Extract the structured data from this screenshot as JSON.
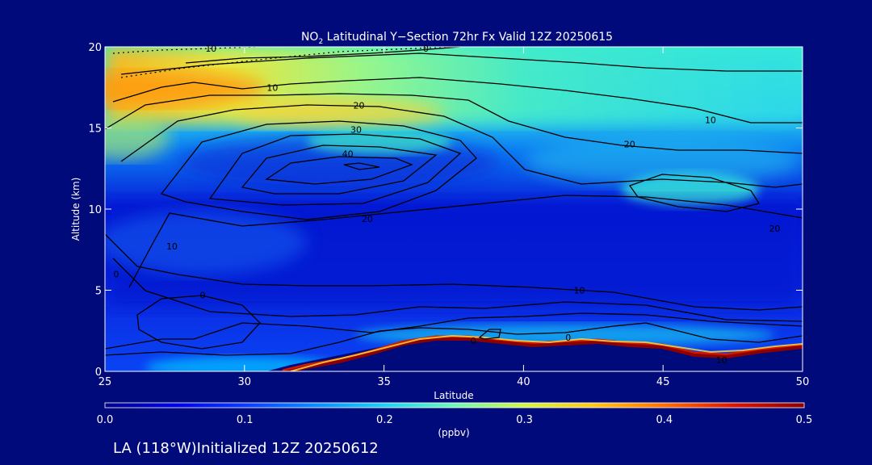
{
  "chart_data": {
    "type": "heatmap",
    "title_main": "NO",
    "title_sub": "2",
    "title_rest": " Latitudinal Y−Section 72hr  Fx Valid 12Z 20250615",
    "xlabel": "Latitude",
    "ylabel": "Altitude (km)",
    "xlim": [
      25,
      50
    ],
    "ylim": [
      0,
      20
    ],
    "x_ticks": [
      {
        "value": 25,
        "label": "25"
      },
      {
        "value": 30,
        "label": "30"
      },
      {
        "value": 35,
        "label": "35"
      },
      {
        "value": 40,
        "label": "40"
      },
      {
        "value": 45,
        "label": "45"
      },
      {
        "value": 50,
        "label": "50"
      }
    ],
    "y_ticks": [
      {
        "value": 0,
        "label": "0"
      },
      {
        "value": 5,
        "label": "5"
      },
      {
        "value": 10,
        "label": "10"
      },
      {
        "value": 15,
        "label": "15"
      },
      {
        "value": 20,
        "label": "20"
      }
    ],
    "colorbar": {
      "range": [
        0.0,
        0.5
      ],
      "unit": "(ppbv)",
      "ticks": [
        {
          "value": 0.0,
          "label": "0.0"
        },
        {
          "value": 0.1,
          "label": "0.1"
        },
        {
          "value": 0.2,
          "label": "0.2"
        },
        {
          "value": 0.3,
          "label": "0.3"
        },
        {
          "value": 0.4,
          "label": "0.4"
        },
        {
          "value": 0.5,
          "label": "0.5"
        }
      ],
      "colors": [
        "#00008c",
        "#0000e6",
        "#0a3cff",
        "#0a8cff",
        "#1ed2f0",
        "#6efab4",
        "#d2f546",
        "#ffc814",
        "#ff6e00",
        "#dc1400",
        "#8c0000"
      ]
    },
    "contour_labels": [
      {
        "x": 28.8,
        "y": 19.9,
        "label": "10"
      },
      {
        "x": 36.5,
        "y": 19.9,
        "label": "0"
      },
      {
        "x": 31.0,
        "y": 17.5,
        "label": "10"
      },
      {
        "x": 34.1,
        "y": 16.4,
        "label": "20"
      },
      {
        "x": 34.0,
        "y": 14.9,
        "label": "30"
      },
      {
        "x": 33.7,
        "y": 13.4,
        "label": "40"
      },
      {
        "x": 46.7,
        "y": 15.5,
        "label": "10"
      },
      {
        "x": 43.8,
        "y": 14.0,
        "label": "20"
      },
      {
        "x": 34.4,
        "y": 9.4,
        "label": "20"
      },
      {
        "x": 27.4,
        "y": 7.7,
        "label": "10"
      },
      {
        "x": 25.4,
        "y": 6.0,
        "label": "0"
      },
      {
        "x": 28.5,
        "y": 4.7,
        "label": "0"
      },
      {
        "x": 42.0,
        "y": 5.0,
        "label": "10"
      },
      {
        "x": 49.0,
        "y": 8.8,
        "label": "20"
      },
      {
        "x": 38.2,
        "y": 1.9,
        "label": "0"
      },
      {
        "x": 41.6,
        "y": 2.1,
        "label": "0"
      },
      {
        "x": 47.1,
        "y": 0.7,
        "label": "10"
      }
    ],
    "footer": "LA (118°W)Initialized 12Z 20250612"
  },
  "colors": {
    "background": "#000a7a",
    "axis": "#ffffff",
    "contour": "#000000"
  }
}
